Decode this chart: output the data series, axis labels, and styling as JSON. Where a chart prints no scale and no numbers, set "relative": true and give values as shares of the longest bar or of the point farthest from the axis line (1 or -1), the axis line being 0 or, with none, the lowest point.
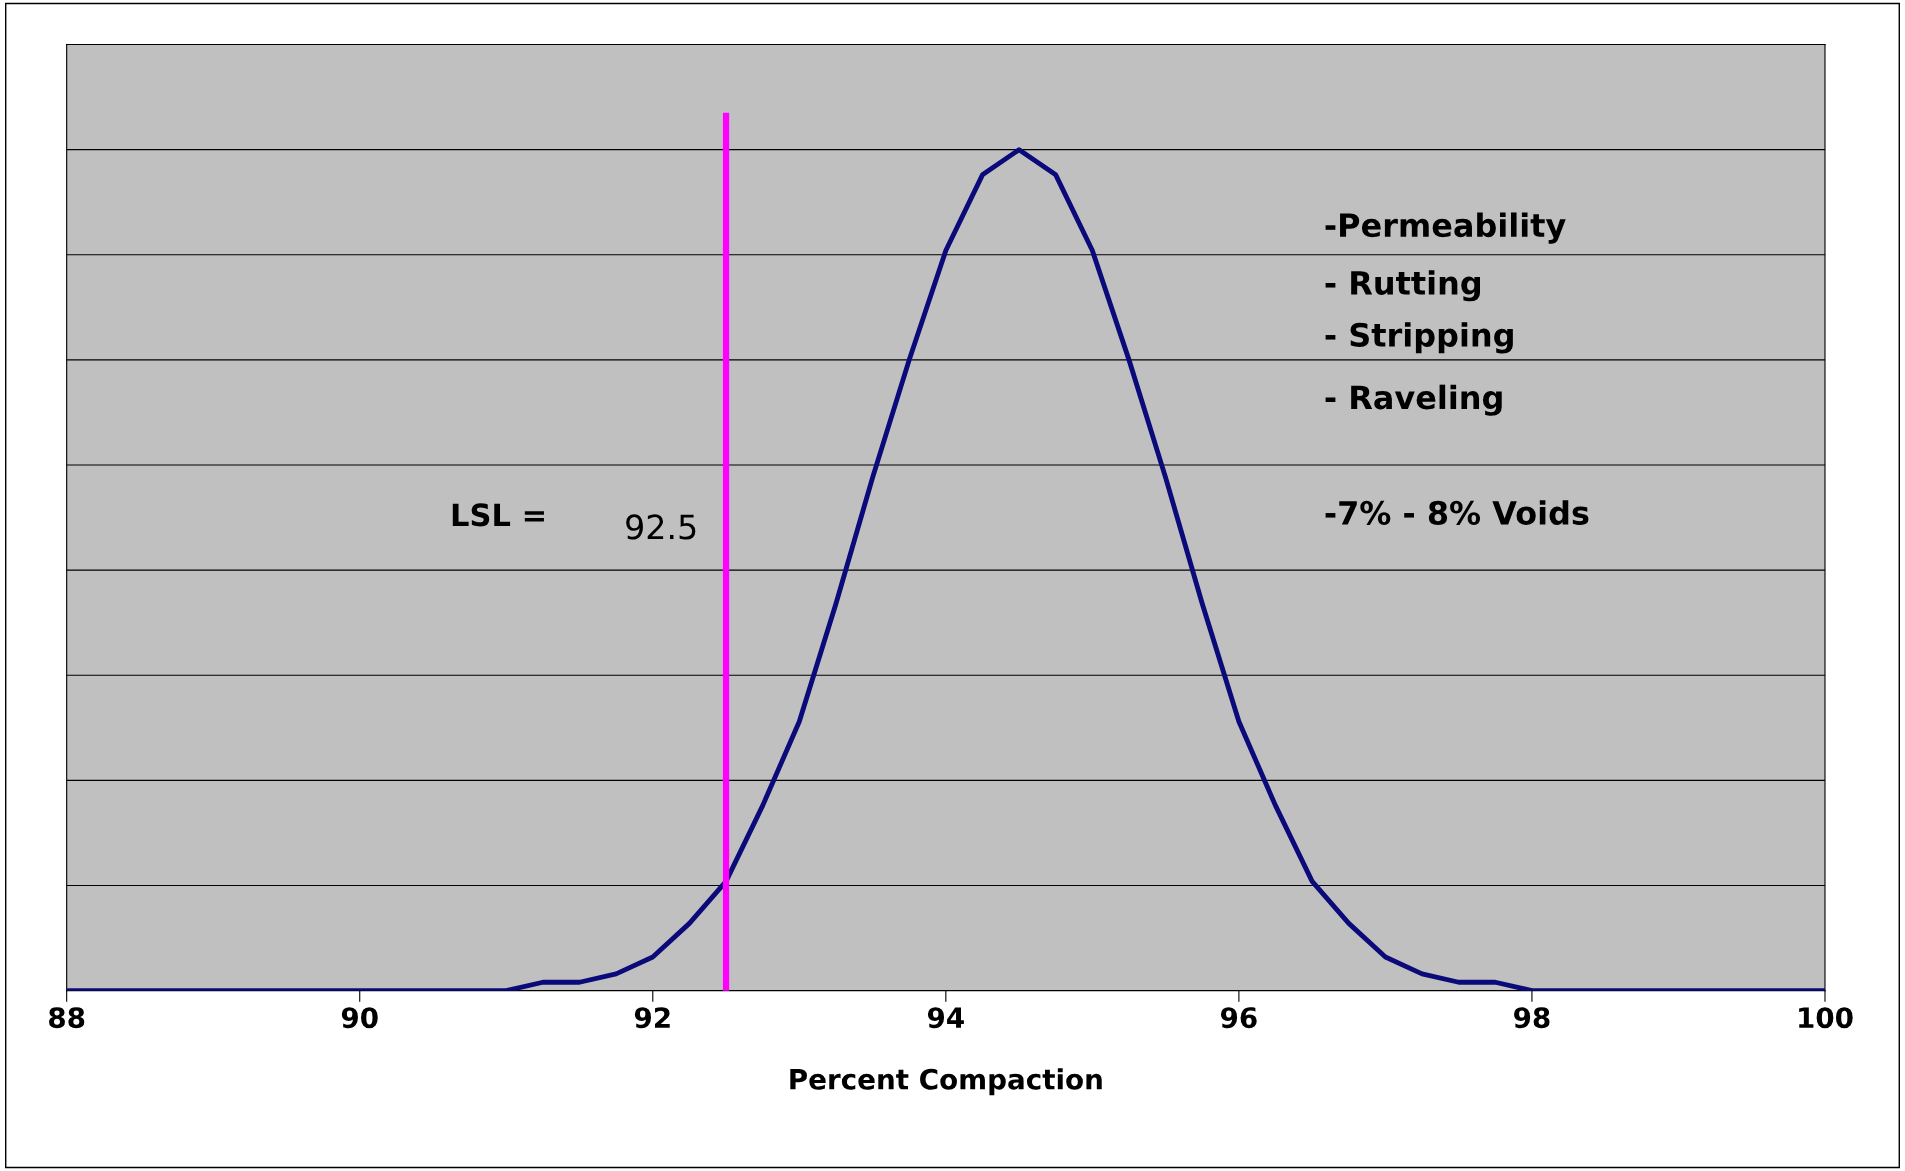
{
  "chart_data": {
    "type": "line",
    "relative": true,
    "xlabel": "Percent Compaction",
    "x": [
      88,
      90.5,
      91,
      91.25,
      91.5,
      91.75,
      92,
      92.25,
      92.5,
      92.75,
      93,
      93.25,
      93.5,
      93.75,
      94,
      94.25,
      94.5,
      94.75,
      95,
      95.25,
      95.5,
      95.75,
      96,
      96.25,
      96.5,
      96.75,
      97,
      97.25,
      97.5,
      97.75,
      98,
      98.5,
      100
    ],
    "series": [
      {
        "color": "#0a0a7a",
        "values": [
          0,
          0,
          0,
          0.01,
          0.01,
          0.02,
          0.04,
          0.08,
          0.13,
          0.22,
          0.32,
          0.46,
          0.61,
          0.75,
          0.88,
          0.97,
          1,
          0.97,
          0.88,
          0.75,
          0.61,
          0.46,
          0.32,
          0.22,
          0.13,
          0.08,
          0.04,
          0.02,
          0.01,
          0.01,
          0,
          0,
          0
        ]
      }
    ],
    "xlim": [
      88,
      100
    ],
    "xticks": [
      88,
      90,
      92,
      94,
      96,
      98,
      100
    ],
    "ref_lines": [
      {
        "axis": "x",
        "value": 92.5,
        "color": "#ff00ff"
      }
    ],
    "annotations": [
      "LSL =",
      {
        "text": "92.5",
        "x": 92.5
      },
      "-Permeability",
      "- Rutting",
      "- Stripping",
      "- Raveling",
      "-7% - 8% Voids"
    ],
    "grid": "y",
    "tick_labels": "x",
    "marker": "none",
    "line_style": "solid"
  }
}
